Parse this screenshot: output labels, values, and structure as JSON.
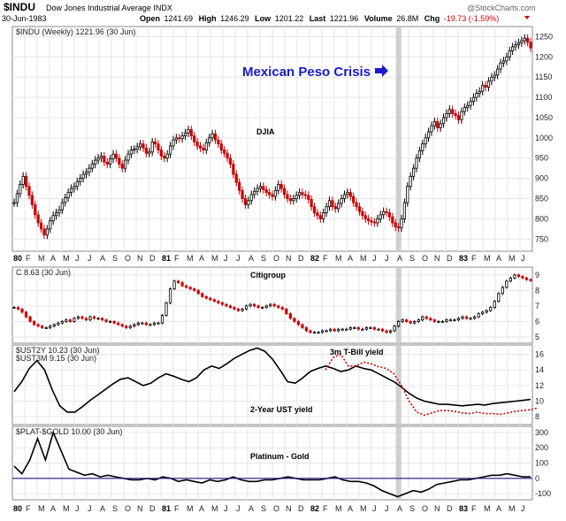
{
  "header": {
    "symbol": "$INDU",
    "name": "Dow Jones Industrial Average INDX",
    "watermark": "@StockCharts.com",
    "date": "30-Jun-1983",
    "open_label": "Open",
    "open": "1241.69",
    "high_label": "High",
    "high": "1246.29",
    "low_label": "Low",
    "low": "1201.22",
    "last_label": "Last",
    "last": "1221.96",
    "volume_label": "Volume",
    "volume": "26.8M",
    "chg_label": "Chg",
    "chg": "-19.73 (-1.59%)"
  },
  "chart_data": [
    {
      "type": "ohlc",
      "legend": "$INDU (Weekly) 1221.96 (30 Jun)",
      "annotations": [
        "DJIA",
        "Mexican Peso Crisis"
      ],
      "yticks": [
        750,
        800,
        850,
        900,
        950,
        1000,
        1050,
        1100,
        1150,
        1200,
        1250
      ],
      "ylim": [
        720,
        1275
      ],
      "highlight_x": "Aug 1982",
      "series": [
        {
          "x_start": "1980-01",
          "x_end": "1983-06",
          "values": [
            840,
            862,
            885,
            905,
            880,
            858,
            835,
            810,
            790,
            775,
            760,
            775,
            795,
            808,
            815,
            822,
            840,
            852,
            865,
            875,
            880,
            892,
            900,
            910,
            915,
            925,
            935,
            945,
            950,
            955,
            940,
            935,
            948,
            960,
            950,
            935,
            925,
            945,
            960,
            970,
            972,
            978,
            985,
            975,
            962,
            965,
            990,
            985,
            970,
            955,
            950,
            960,
            980,
            995,
            1000,
            998,
            1005,
            1012,
            1020,
            1005,
            990,
            980,
            975,
            970,
            988,
            1000,
            1010,
            995,
            985,
            970,
            962,
            950,
            935,
            910,
            890,
            870,
            850,
            835,
            845,
            860,
            868,
            875,
            880,
            872,
            865,
            860,
            855,
            870,
            885,
            875,
            860,
            850,
            845,
            850,
            858,
            865,
            860,
            858,
            848,
            830,
            815,
            808,
            800,
            815,
            830,
            845,
            830,
            825,
            838,
            850,
            860,
            865,
            855,
            840,
            830,
            818,
            808,
            800,
            795,
            792,
            790,
            800,
            810,
            818,
            815,
            805,
            790,
            780,
            778,
            800,
            840,
            880,
            905,
            925,
            950,
            968,
            985,
            1000,
            1015,
            1030,
            1040,
            1025,
            1035,
            1050,
            1060,
            1070,
            1060,
            1055,
            1045,
            1065,
            1075,
            1080,
            1090,
            1100,
            1110,
            1115,
            1130,
            1125,
            1140,
            1150,
            1155,
            1170,
            1185,
            1190,
            1200,
            1215,
            1225,
            1230,
            1235,
            1240,
            1246,
            1236,
            1222
          ],
          "color_up": "#000000",
          "color_down": "#cc0000"
        }
      ]
    },
    {
      "type": "ohlc",
      "legend": "C 8.63 (30 Jun)",
      "annotations": [
        "Citigroup"
      ],
      "yticks": [
        5,
        6,
        7,
        8,
        9
      ],
      "ylim": [
        4.6,
        9.5
      ],
      "highlight_x": "Aug 1982",
      "series": [
        {
          "x_start": "1980-01",
          "x_end": "1983-06",
          "values": [
            6.9,
            6.8,
            6.6,
            6.3,
            6.0,
            5.8,
            5.7,
            5.6,
            5.6,
            5.7,
            5.8,
            5.9,
            6.0,
            6.1,
            6.0,
            6.2,
            6.3,
            6.2,
            6.1,
            6.3,
            6.2,
            6.2,
            6.1,
            6.0,
            6.0,
            5.9,
            5.8,
            5.7,
            5.6,
            5.7,
            5.8,
            5.9,
            5.9,
            5.8,
            5.8,
            5.9,
            5.9,
            6.4,
            7.2,
            8.1,
            8.6,
            8.5,
            8.3,
            8.2,
            8.1,
            8.0,
            7.8,
            7.6,
            7.5,
            7.4,
            7.3,
            7.2,
            7.1,
            7.0,
            6.9,
            6.8,
            6.7,
            6.8,
            7.0,
            7.1,
            7.0,
            6.9,
            6.9,
            7.0,
            7.1,
            7.0,
            6.9,
            6.8,
            6.5,
            6.2,
            6.0,
            5.8,
            5.6,
            5.4,
            5.3,
            5.3,
            5.3,
            5.4,
            5.4,
            5.5,
            5.4,
            5.5,
            5.5,
            5.5,
            5.6,
            5.6,
            5.5,
            5.5,
            5.6,
            5.6,
            5.5,
            5.5,
            5.4,
            5.3,
            5.4,
            5.7,
            6.0,
            6.1,
            6.0,
            5.9,
            6.0,
            6.1,
            6.3,
            6.2,
            6.1,
            6.0,
            6.0,
            6.0,
            6.1,
            6.1,
            6.1,
            6.2,
            6.3,
            6.2,
            6.2,
            6.3,
            6.5,
            6.6,
            6.7,
            6.9,
            7.3,
            7.8,
            8.2,
            8.6,
            8.8,
            9.0,
            8.9,
            8.8,
            8.7,
            8.63
          ],
          "color_up": "#000000",
          "color_down": "#cc0000"
        }
      ]
    },
    {
      "type": "line",
      "legend": [
        "$UST2Y 10.23 (30 Jun)",
        "$UST3M 9.15 (30 Jun)"
      ],
      "annotations": [
        "3m T-Bill yield",
        "2-Year UST yield"
      ],
      "yticks": [
        8,
        10,
        12,
        14,
        16
      ],
      "ylim": [
        7.0,
        17.2
      ],
      "highlight_x": "Aug 1982",
      "x_start": "1980-01",
      "x_end": "1983-06",
      "series": [
        {
          "name": "$UST2Y",
          "color": "#000000",
          "dash": false,
          "values": [
            11.2,
            12.5,
            14.2,
            15.2,
            14.0,
            11.5,
            9.4,
            8.6,
            8.6,
            9.3,
            10.1,
            10.8,
            11.5,
            12.2,
            12.8,
            13.0,
            12.5,
            12.0,
            12.3,
            13.0,
            13.5,
            13.2,
            12.8,
            12.5,
            13.0,
            14.0,
            14.5,
            14.2,
            14.8,
            15.5,
            16.0,
            16.5,
            16.8,
            16.4,
            15.4,
            14.0,
            12.5,
            12.3,
            13.0,
            13.8,
            14.2,
            14.5,
            14.2,
            13.8,
            14.0,
            14.5,
            14.2,
            14.0,
            13.5,
            13.0,
            12.5,
            11.8,
            11.0,
            10.4,
            10.0,
            9.8,
            9.6,
            9.6,
            9.5,
            9.4,
            9.5,
            9.6,
            9.5,
            9.7,
            9.8,
            9.9,
            10.0,
            10.1,
            10.23
          ],
          "ts_start": "1980-01-04"
        },
        {
          "name": "$UST3M",
          "color": "#cc0000",
          "dash": true,
          "start_index": 41,
          "values": [
            14.0,
            15.6,
            16.0,
            14.5,
            14.5,
            15.0,
            14.8,
            14.4,
            14.2,
            13.5,
            12.0,
            10.0,
            8.6,
            8.2,
            8.5,
            8.8,
            8.8,
            8.7,
            8.5,
            8.4,
            8.6,
            8.4,
            8.4,
            8.3,
            8.5,
            8.7,
            8.8,
            8.9,
            9.15
          ]
        }
      ]
    },
    {
      "type": "line",
      "legend": "$PLAT-$GOLD 10.00 (30 Jun)",
      "annotations": [
        "Platinum - Gold"
      ],
      "yticks": [
        -100,
        0,
        100,
        200,
        300
      ],
      "ylim": [
        -140,
        340
      ],
      "highlight_x": "Aug 1982",
      "x_start": "1980-01",
      "x_end": "1983-06",
      "series": [
        {
          "name": "$PLAT-$GOLD",
          "color": "#000000",
          "values": [
            80,
            30,
            120,
            260,
            120,
            300,
            180,
            60,
            40,
            20,
            30,
            10,
            20,
            10,
            0,
            -10,
            -10,
            0,
            -10,
            10,
            0,
            -20,
            -10,
            -20,
            -30,
            -10,
            -20,
            -10,
            10,
            -10,
            -20,
            -20,
            -10,
            -10,
            0,
            10,
            0,
            -10,
            -10,
            -10,
            0,
            10,
            -10,
            -20,
            -20,
            -30,
            -50,
            -80,
            -100,
            -120,
            -100,
            -80,
            -90,
            -70,
            -40,
            -30,
            -20,
            -10,
            -10,
            0,
            10,
            20,
            20,
            30,
            20,
            10,
            10
          ]
        }
      ],
      "zero_line": true
    }
  ],
  "x_axis": {
    "year_labels": [
      "80",
      "81",
      "82",
      "83"
    ],
    "month_labels": [
      "F",
      "M",
      "A",
      "M",
      "J",
      "J",
      "A",
      "S",
      "O",
      "N",
      "D",
      "F",
      "M",
      "A",
      "M",
      "J",
      "J",
      "A",
      "S",
      "O",
      "N",
      "D",
      "F",
      "M",
      "A",
      "M",
      "J",
      "J",
      "A",
      "S",
      "O",
      "N",
      "D",
      "F",
      "M",
      "A",
      "M",
      "J"
    ]
  },
  "colors": {
    "up": "#000000",
    "down": "#cc0000",
    "highlight": "#c8c8c8",
    "annotation_blue": "#1a1acc",
    "zero_line": "#1a1a8a"
  }
}
